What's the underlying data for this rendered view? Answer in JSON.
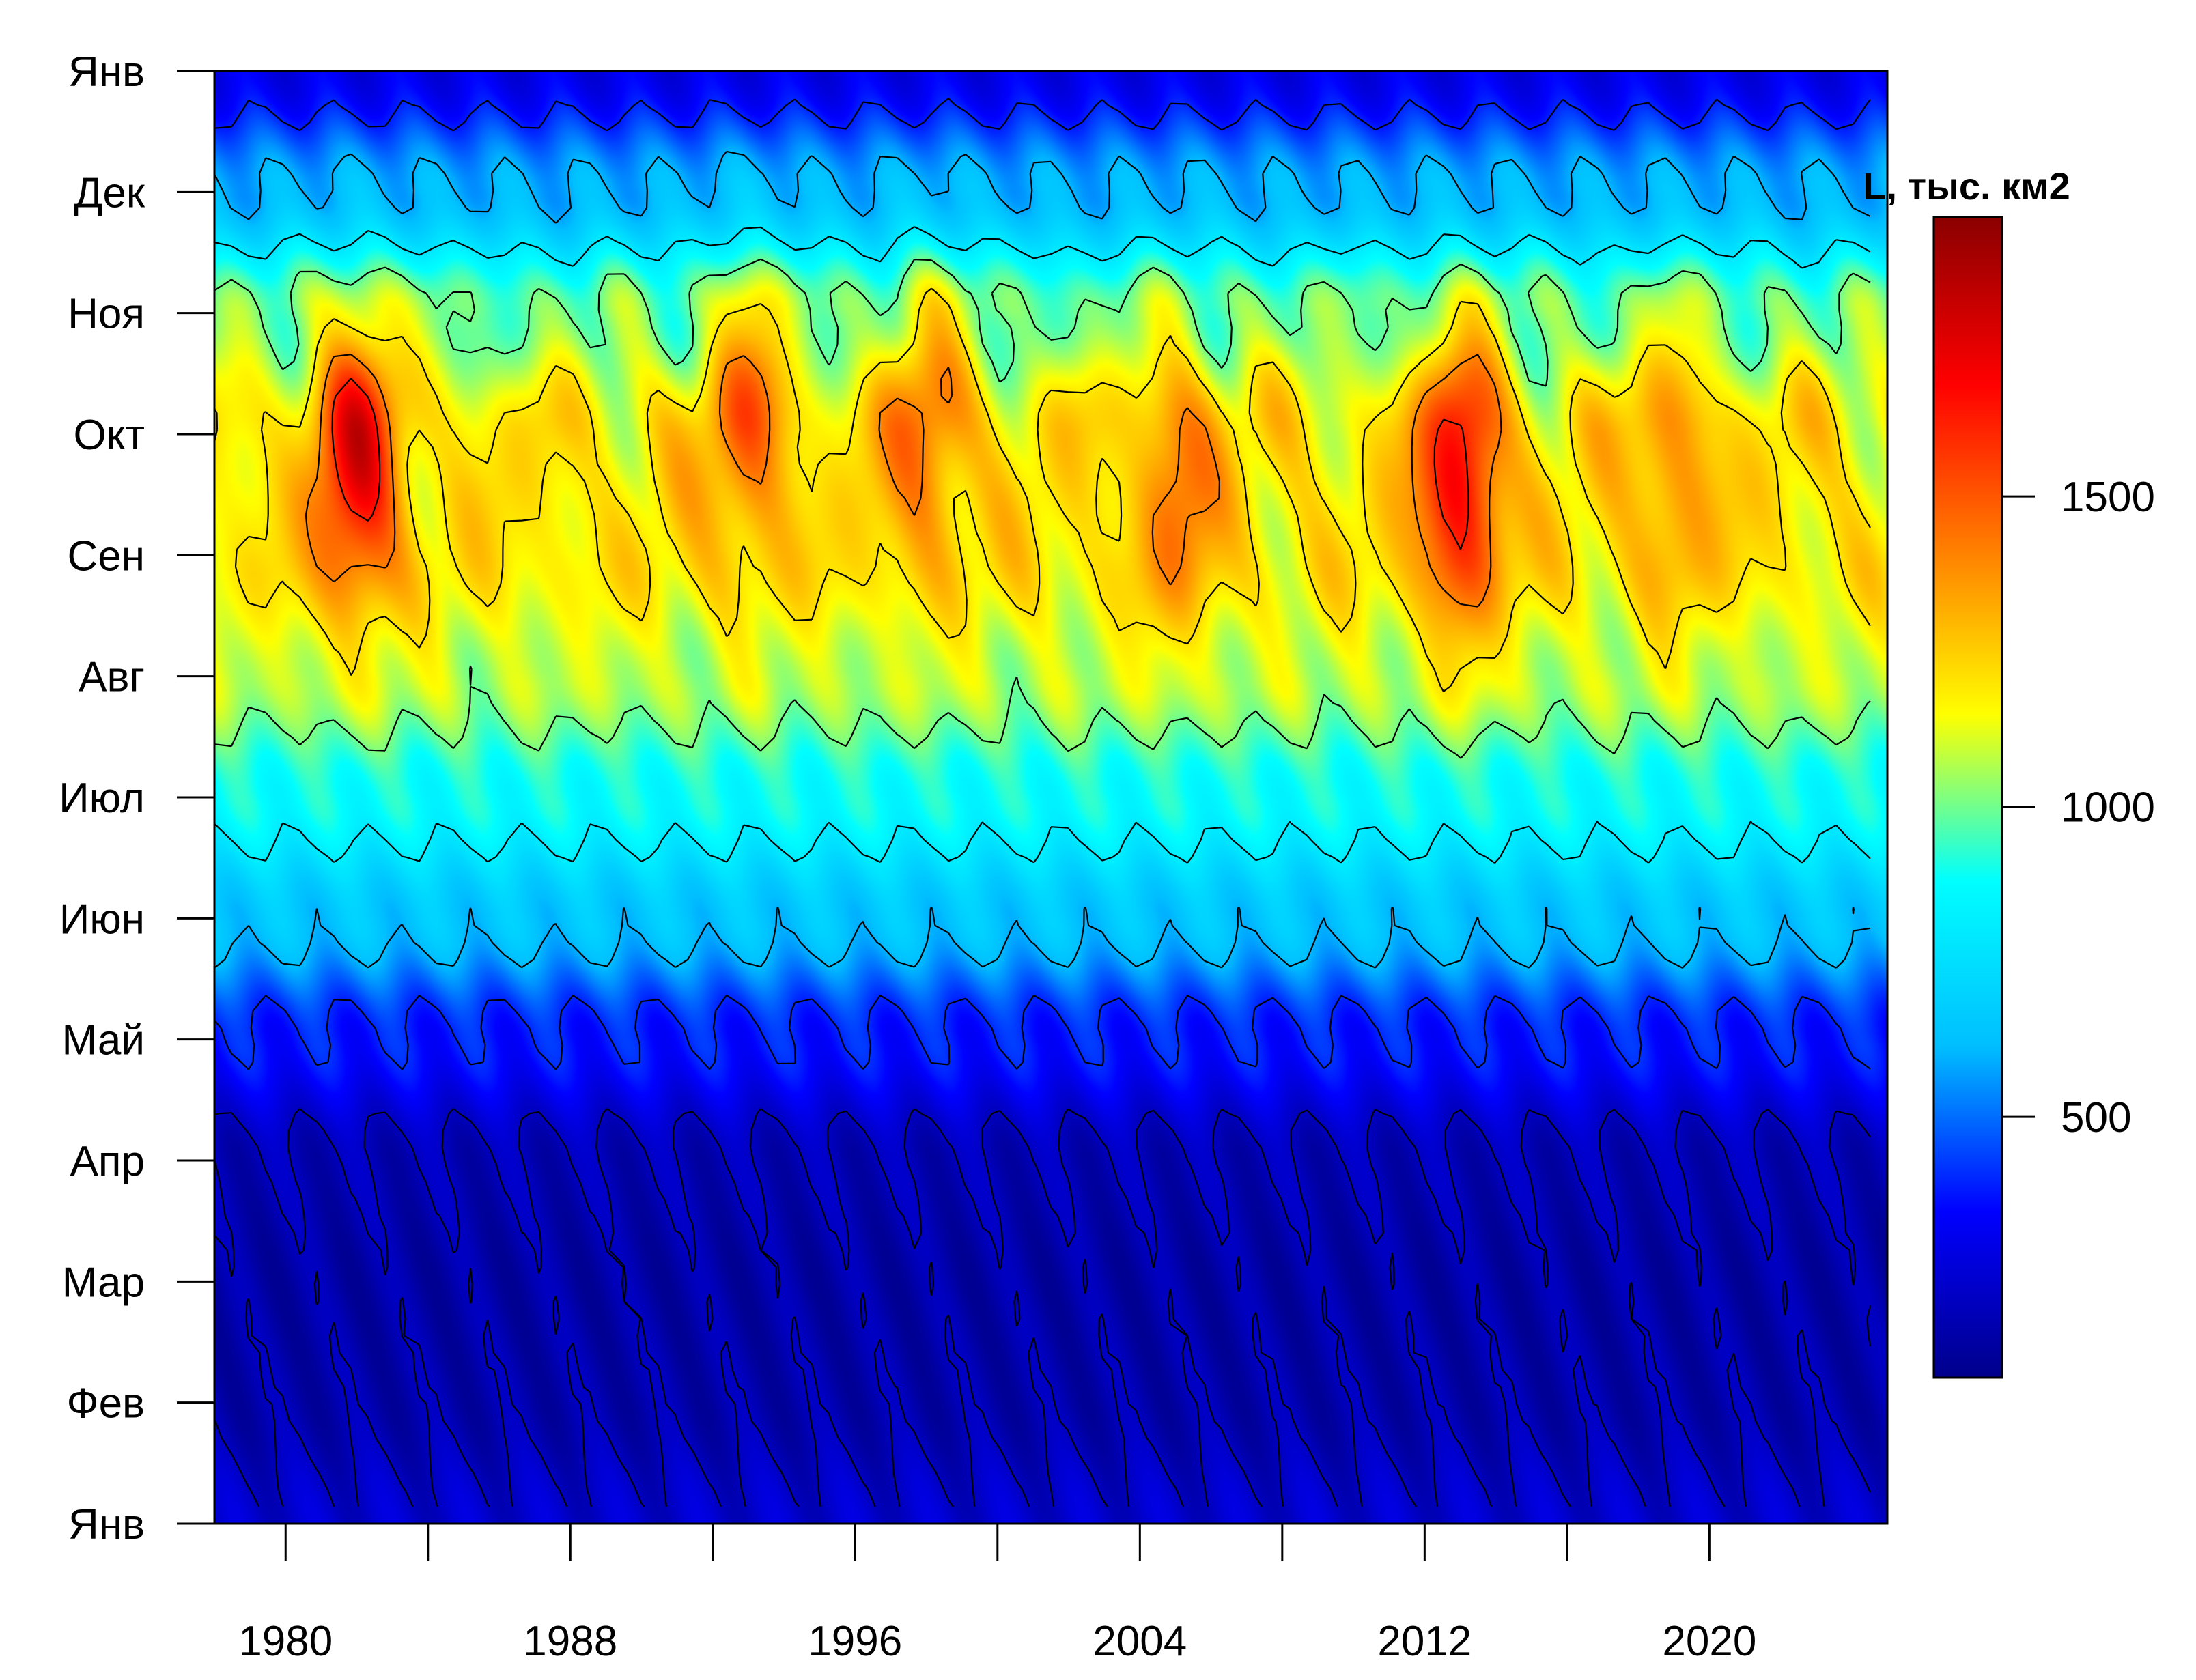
{
  "chart_data": {
    "type": "heatmap",
    "title": "",
    "xlabel": "",
    "ylabel": "",
    "x_ticks": [
      "1980",
      "1988",
      "1996",
      "2004",
      "2012",
      "2020"
    ],
    "x_tick_values": [
      1980,
      1984,
      1988,
      1992,
      1996,
      2000,
      2004,
      2008,
      2012,
      2016,
      2020
    ],
    "xlim": [
      1978,
      2025
    ],
    "y_ticks": [
      "Янв",
      "Фев",
      "Мар",
      "Апр",
      "Май",
      "Июн",
      "Июл",
      "Авг",
      "Сен",
      "Окт",
      "Ноя",
      "Дек",
      "Янв"
    ],
    "ylim": [
      0,
      12
    ],
    "colorbar": {
      "title": "L, тыс. км2",
      "ticks": [
        "500",
        "1000",
        "1500"
      ],
      "tick_values": [
        500,
        1000,
        1500
      ],
      "range": [
        80,
        1950
      ],
      "colors": [
        "#00008b",
        "#0000ff",
        "#00bfff",
        "#00ffff",
        "#ffff00",
        "#ff7f00",
        "#ff0000",
        "#8b0000"
      ]
    },
    "contours": true,
    "seasonal_profile": {
      "months": [
        "Янв",
        "Фев",
        "Мар",
        "Апр",
        "Май",
        "Июн",
        "Июл",
        "Авг",
        "Сен",
        "Окт",
        "Ноя",
        "Дек",
        "Янв"
      ],
      "values": [
        230,
        160,
        150,
        180,
        380,
        650,
        880,
        1080,
        1200,
        1200,
        1000,
        600,
        300
      ]
    },
    "notable_maxima": [
      {
        "x": 1982,
        "y": 8.8,
        "value": 1700
      },
      {
        "x": 1993,
        "y": 9.3,
        "value": 1450
      },
      {
        "x": 1998,
        "y": 9.2,
        "value": 1450
      },
      {
        "x": 2005,
        "y": 8.6,
        "value": 1450
      },
      {
        "x": 2013,
        "y": 8.6,
        "value": 1700
      },
      {
        "x": 2019,
        "y": 8.8,
        "value": 1400
      }
    ]
  }
}
